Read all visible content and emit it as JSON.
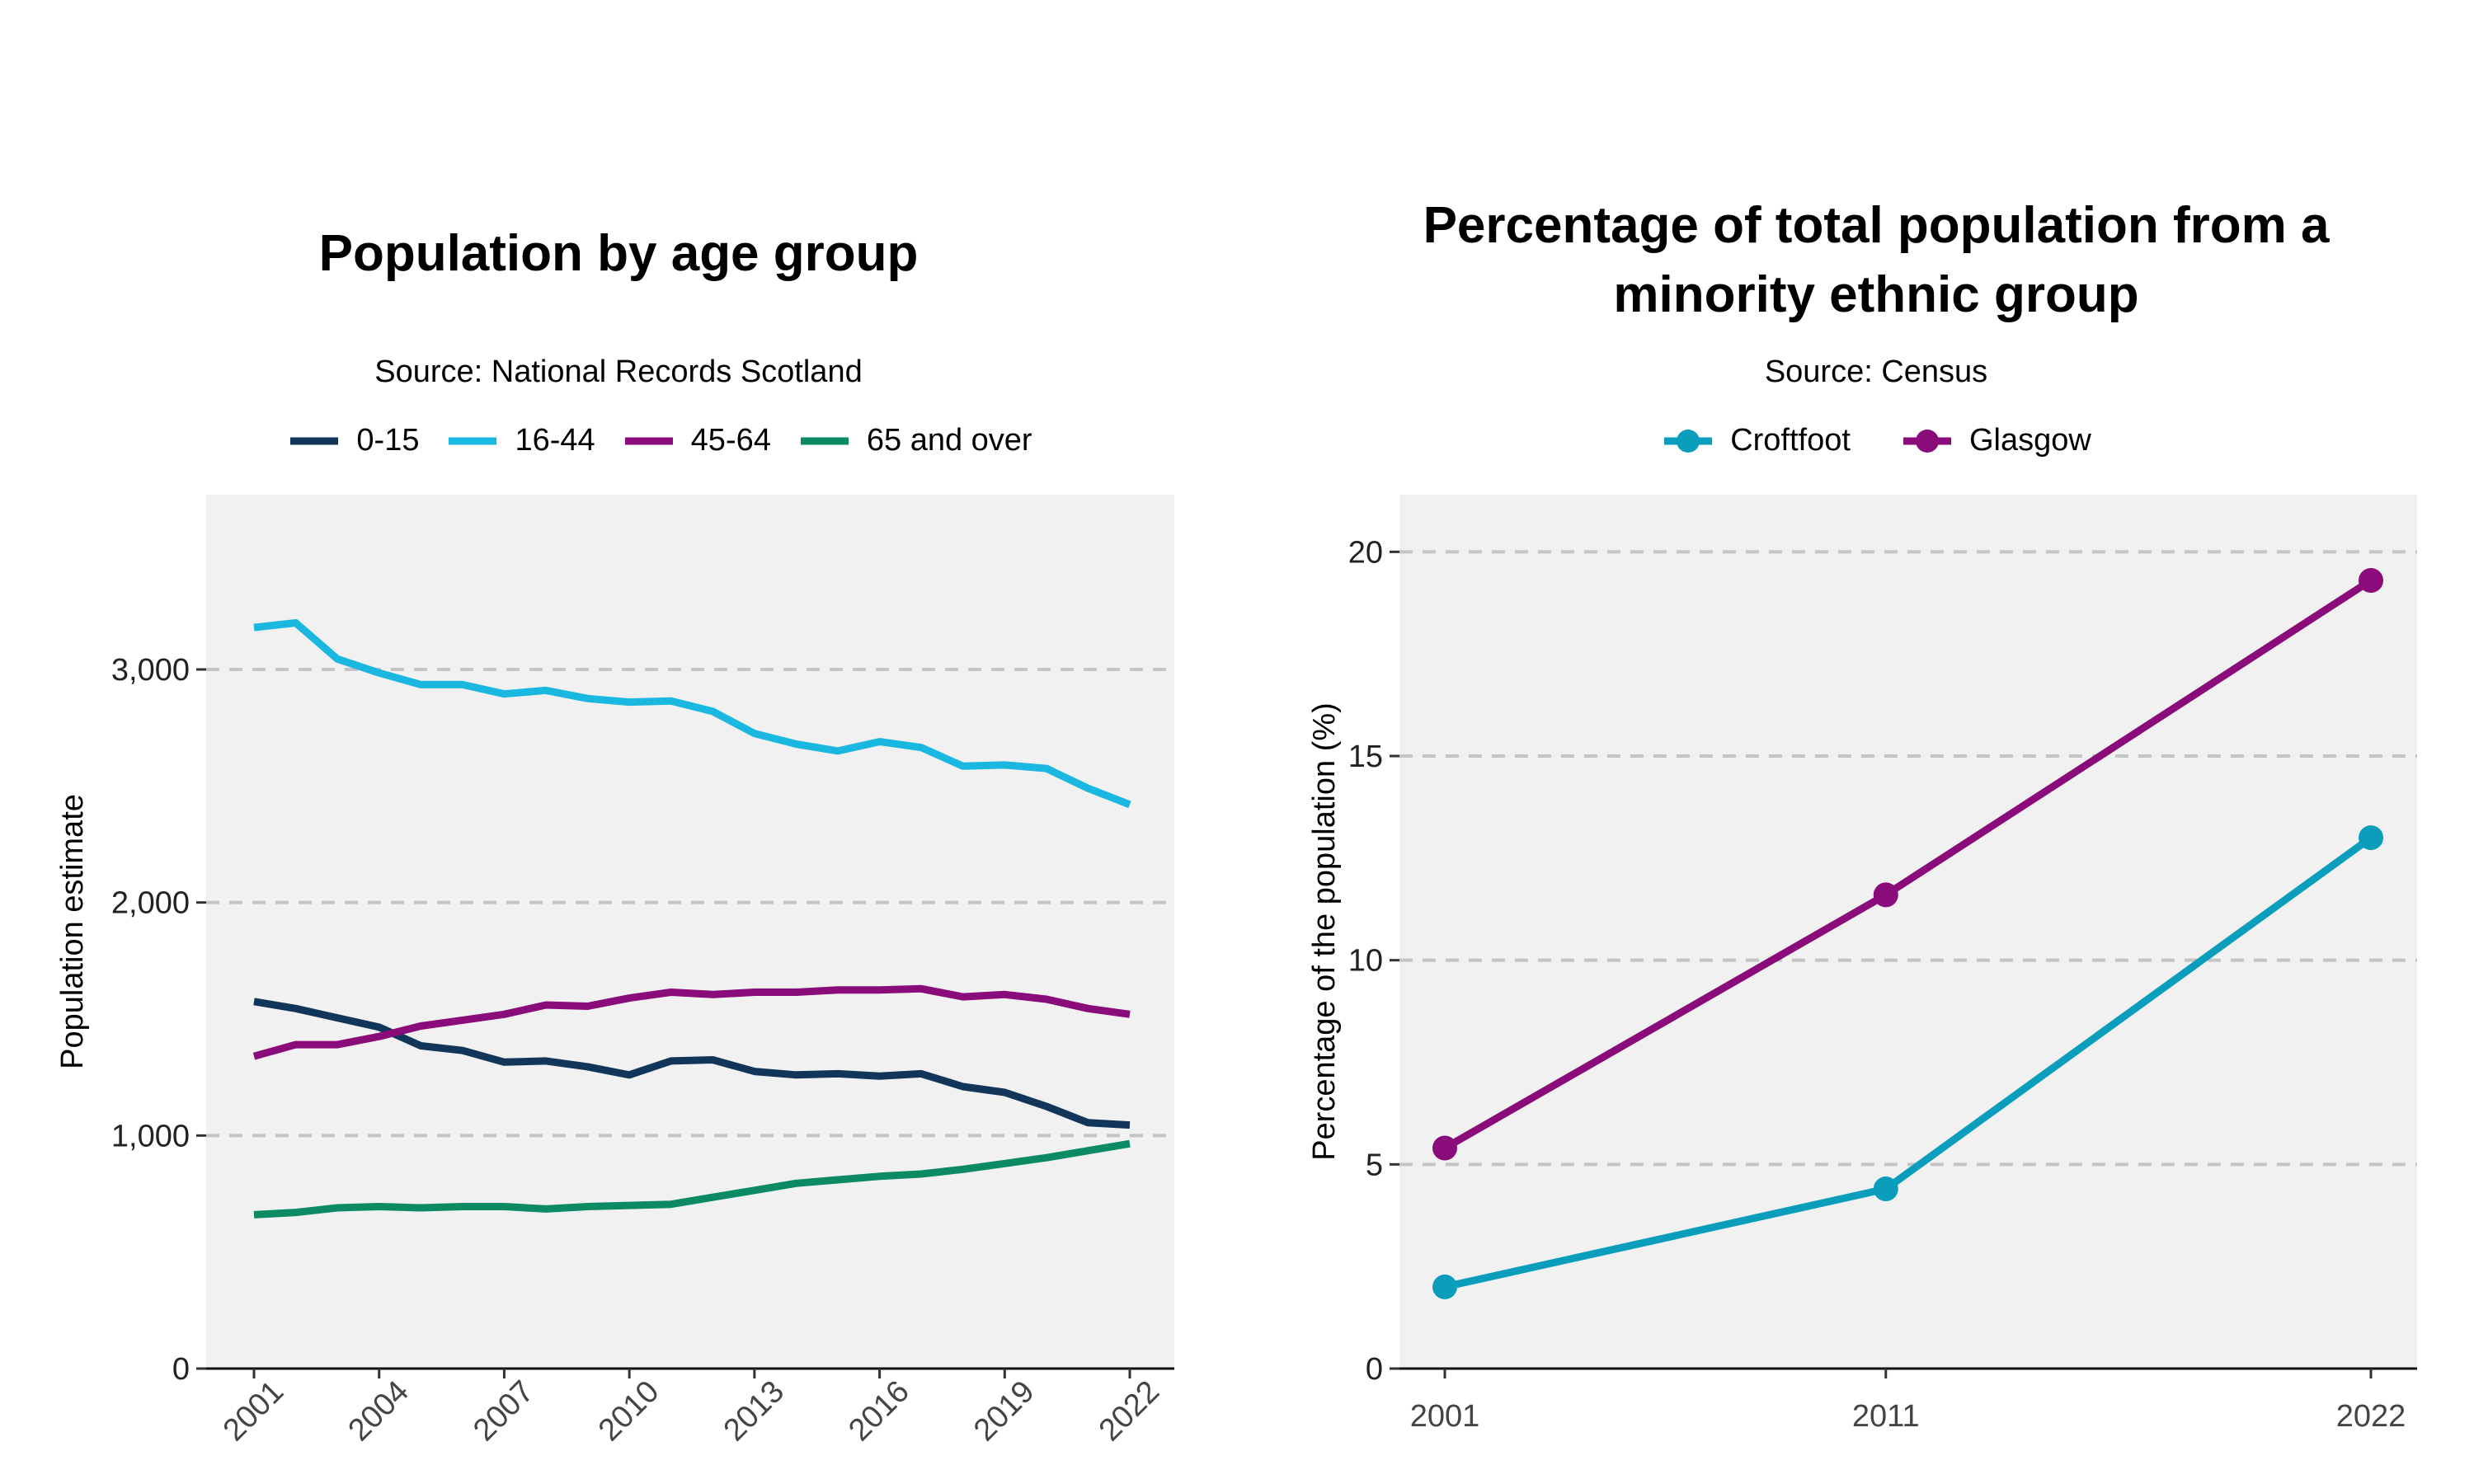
{
  "chart_data": [
    {
      "type": "line",
      "title": "Population by age group",
      "subtitle": "Source: National Records Scotland",
      "xlabel": "",
      "ylabel": "Population estimate",
      "ylim": [
        0,
        3750
      ],
      "yticks": [
        0,
        1000,
        2000,
        3000
      ],
      "ytick_labels": [
        "0",
        "1,000",
        "2,000",
        "3,000"
      ],
      "xticks": [
        2001,
        2004,
        2007,
        2010,
        2013,
        2016,
        2019,
        2022
      ],
      "xtick_labels": [
        "2001",
        "2004",
        "2007",
        "2010",
        "2013",
        "2016",
        "2019",
        "2022"
      ],
      "x": [
        2001,
        2002,
        2003,
        2004,
        2005,
        2006,
        2007,
        2008,
        2009,
        2010,
        2011,
        2012,
        2013,
        2014,
        2015,
        2016,
        2017,
        2018,
        2019,
        2020,
        2021,
        2022
      ],
      "legend_position": "top",
      "grid": "horizontal dashed",
      "series": [
        {
          "name": "0-15",
          "color": "#12365a",
          "values": [
            1575,
            1545,
            1505,
            1465,
            1385,
            1365,
            1315,
            1320,
            1295,
            1260,
            1320,
            1325,
            1275,
            1260,
            1265,
            1255,
            1265,
            1210,
            1185,
            1125,
            1055,
            1045
          ]
        },
        {
          "name": "16-44",
          "color": "#1ab8e0",
          "values": [
            3180,
            3200,
            3045,
            2985,
            2935,
            2935,
            2895,
            2910,
            2875,
            2860,
            2865,
            2820,
            2725,
            2680,
            2650,
            2690,
            2665,
            2585,
            2590,
            2575,
            2490,
            2420
          ]
        },
        {
          "name": "45-64",
          "color": "#8a0b7a",
          "values": [
            1340,
            1390,
            1390,
            1425,
            1470,
            1495,
            1520,
            1560,
            1555,
            1590,
            1615,
            1605,
            1615,
            1615,
            1625,
            1625,
            1630,
            1595,
            1605,
            1585,
            1545,
            1520
          ]
        },
        {
          "name": "65 and over",
          "color": "#0c8a64",
          "values": [
            660,
            670,
            690,
            695,
            690,
            695,
            695,
            685,
            695,
            700,
            705,
            735,
            765,
            795,
            810,
            825,
            835,
            855,
            880,
            905,
            935,
            965
          ]
        }
      ]
    },
    {
      "type": "line",
      "title": "Percentage of total population from a minority ethnic group",
      "title_lines": [
        "Percentage of total population from a",
        "minority ethnic group"
      ],
      "subtitle": "Source: Census",
      "xlabel": "",
      "ylabel": "Percentage of the population (%)",
      "ylim": [
        0,
        21.4
      ],
      "yticks": [
        0,
        5,
        10,
        15,
        20
      ],
      "ytick_labels": [
        "0",
        "5",
        "10",
        "15",
        "20"
      ],
      "x": [
        2001,
        2011,
        2022
      ],
      "xtick_labels": [
        "2001",
        "2011",
        "2022"
      ],
      "legend_position": "top",
      "grid": "horizontal dashed",
      "markers": true,
      "series": [
        {
          "name": "Croftfoot",
          "color": "#0a9dbc",
          "values": [
            2.0,
            4.4,
            13.0
          ]
        },
        {
          "name": "Glasgow",
          "color": "#8a0b7a",
          "values": [
            5.4,
            11.6,
            19.3
          ]
        }
      ]
    }
  ]
}
